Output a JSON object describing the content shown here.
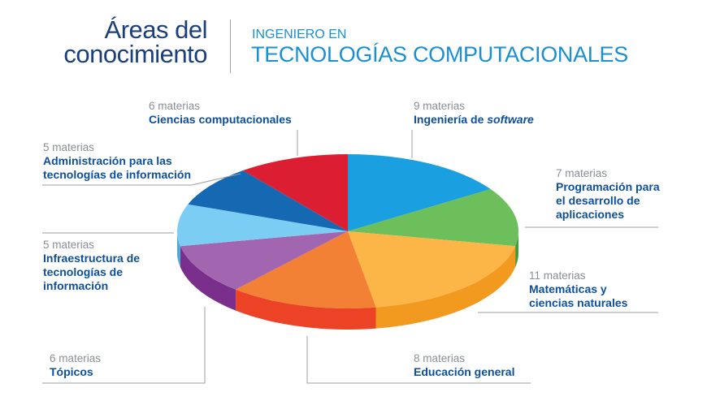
{
  "header": {
    "title_line1": "Áreas del",
    "title_line2": "conocimiento",
    "subtitle_small": "INGENIERO EN",
    "subtitle_big": "TECNOLOGÍAS COMPUTACIONALES"
  },
  "chart_data": {
    "type": "pie",
    "title": "Áreas del conocimiento",
    "unit": "materias",
    "slices": [
      {
        "count_label": "9 materias",
        "name": "Ingeniería de ",
        "name_italic": "software",
        "value": 9,
        "color": "#1aa0e0",
        "side": "#0e7fb8"
      },
      {
        "count_label": "7 materias",
        "name": "Programación para el desarrollo de aplicaciones",
        "value": 7,
        "color": "#6cbf5a",
        "side": "#3f9a3a"
      },
      {
        "count_label": "11 materias",
        "name": "Matemáticas y ciencias naturales",
        "value": 11,
        "color": "#fcb648",
        "side": "#f29a1f"
      },
      {
        "count_label": "8 materias",
        "name": "Educación general",
        "value": 8,
        "color": "#f28135",
        "side": "#ec4326"
      },
      {
        "count_label": "6 materias",
        "name": "Tópicos",
        "value": 6,
        "color": "#a266b1",
        "side": "#7a2f8d"
      },
      {
        "count_label": "5 materias",
        "name": "Infraestructura de tecnologías de información",
        "value": 5,
        "color": "#7ccdf3",
        "side": "#4aa9d6"
      },
      {
        "count_label": "5 materias",
        "name": "Administración para las tecnologías de información",
        "value": 5,
        "color": "#1568b2",
        "side": "#0f4f8a"
      },
      {
        "count_label": "6 materias",
        "name": "Ciencias computacionales",
        "value": 6,
        "color": "#dc1e32",
        "side": "#a5121f"
      }
    ]
  }
}
